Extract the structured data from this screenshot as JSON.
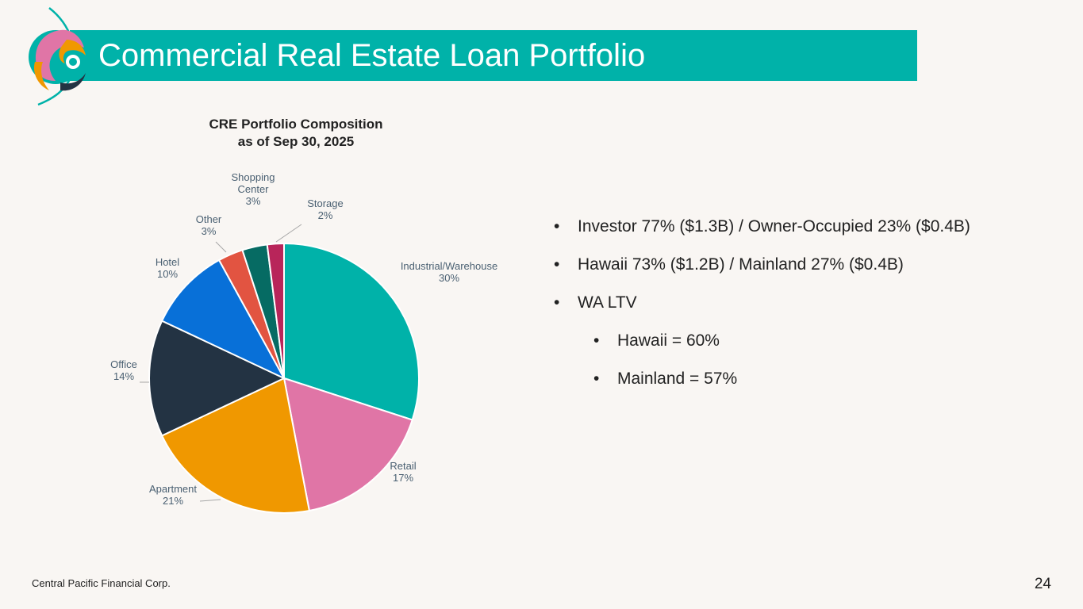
{
  "header": {
    "title": "Commercial Real Estate Loan Portfolio",
    "bar_color": "#00b2a9",
    "logo_icon": "central-pacific-swirl-logo"
  },
  "chart_data": {
    "type": "pie",
    "title_lines": [
      "CRE Portfolio Composition",
      "as of Sep 30, 2025"
    ],
    "slices": [
      {
        "label": [
          "Industrial/Warehouse"
        ],
        "value": 30,
        "display": "30%",
        "color": "#00b2a9"
      },
      {
        "label": [
          "Retail"
        ],
        "value": 17,
        "display": "17%",
        "color": "#e075a6"
      },
      {
        "label": [
          "Apartment"
        ],
        "value": 21,
        "display": "21%",
        "color": "#f09800"
      },
      {
        "label": [
          "Office"
        ],
        "value": 14,
        "display": "14%",
        "color": "#233343"
      },
      {
        "label": [
          "Hotel"
        ],
        "value": 10,
        "display": "10%",
        "color": "#0870d8"
      },
      {
        "label": [
          "Other"
        ],
        "value": 3,
        "display": "3%",
        "color": "#e25441"
      },
      {
        "label": [
          "Shopping",
          "Center"
        ],
        "value": 3,
        "display": "3%",
        "color": "#066b63"
      },
      {
        "label": [
          "Storage"
        ],
        "value": 2,
        "display": "2%",
        "color": "#b8255a"
      }
    ]
  },
  "bullets": [
    {
      "level": 1,
      "text": "Investor 77% ($1.3B) / Owner-Occupied 23% ($0.4B)"
    },
    {
      "level": 1,
      "text": "Hawaii 73% ($1.2B) / Mainland 27% ($0.4B)"
    },
    {
      "level": 1,
      "text": "WA LTV"
    },
    {
      "level": 2,
      "text": "Hawaii = 60%"
    },
    {
      "level": 2,
      "text": "Mainland = 57%"
    }
  ],
  "bullet_symbol": "•",
  "footer": {
    "company": "Central Pacific Financial Corp.",
    "page": "24"
  }
}
